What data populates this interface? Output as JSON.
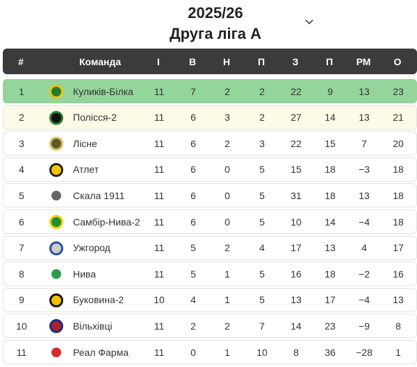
{
  "header": {
    "title": "2025/26",
    "subtitle": "Друга ліга А"
  },
  "table": {
    "columns": [
      "#",
      "Команда",
      "І",
      "В",
      "Н",
      "П",
      "З",
      "П",
      "РМ",
      "О"
    ],
    "rows": [
      [
        "1",
        "Куликів-Білка",
        "11",
        "7",
        "2",
        "2",
        "22",
        "9",
        "13",
        "23"
      ],
      [
        "2",
        "Полісся-2",
        "11",
        "6",
        "3",
        "2",
        "27",
        "14",
        "13",
        "21"
      ],
      [
        "3",
        "Лісне",
        "11",
        "6",
        "2",
        "3",
        "22",
        "15",
        "7",
        "20"
      ],
      [
        "4",
        "Атлет",
        "11",
        "6",
        "0",
        "5",
        "15",
        "18",
        "−3",
        "18"
      ],
      [
        "5",
        "Скала 1911",
        "11",
        "6",
        "0",
        "5",
        "31",
        "18",
        "13",
        "18"
      ],
      [
        "6",
        "Самбір-Нива-2",
        "11",
        "6",
        "0",
        "5",
        "10",
        "14",
        "−4",
        "18"
      ],
      [
        "7",
        "Ужгород",
        "11",
        "5",
        "2",
        "4",
        "17",
        "13",
        "4",
        "17"
      ],
      [
        "8",
        "Нива",
        "11",
        "5",
        "1",
        "5",
        "16",
        "18",
        "−2",
        "16"
      ],
      [
        "9",
        "Буковина-2",
        "10",
        "4",
        "1",
        "5",
        "13",
        "17",
        "−4",
        "13"
      ],
      [
        "10",
        "Вільхівці",
        "11",
        "2",
        "2",
        "7",
        "14",
        "23",
        "−9",
        "8"
      ],
      [
        "11",
        "Реал Фарма",
        "11",
        "0",
        "1",
        "10",
        "8",
        "36",
        "−28",
        "1"
      ]
    ]
  }
}
